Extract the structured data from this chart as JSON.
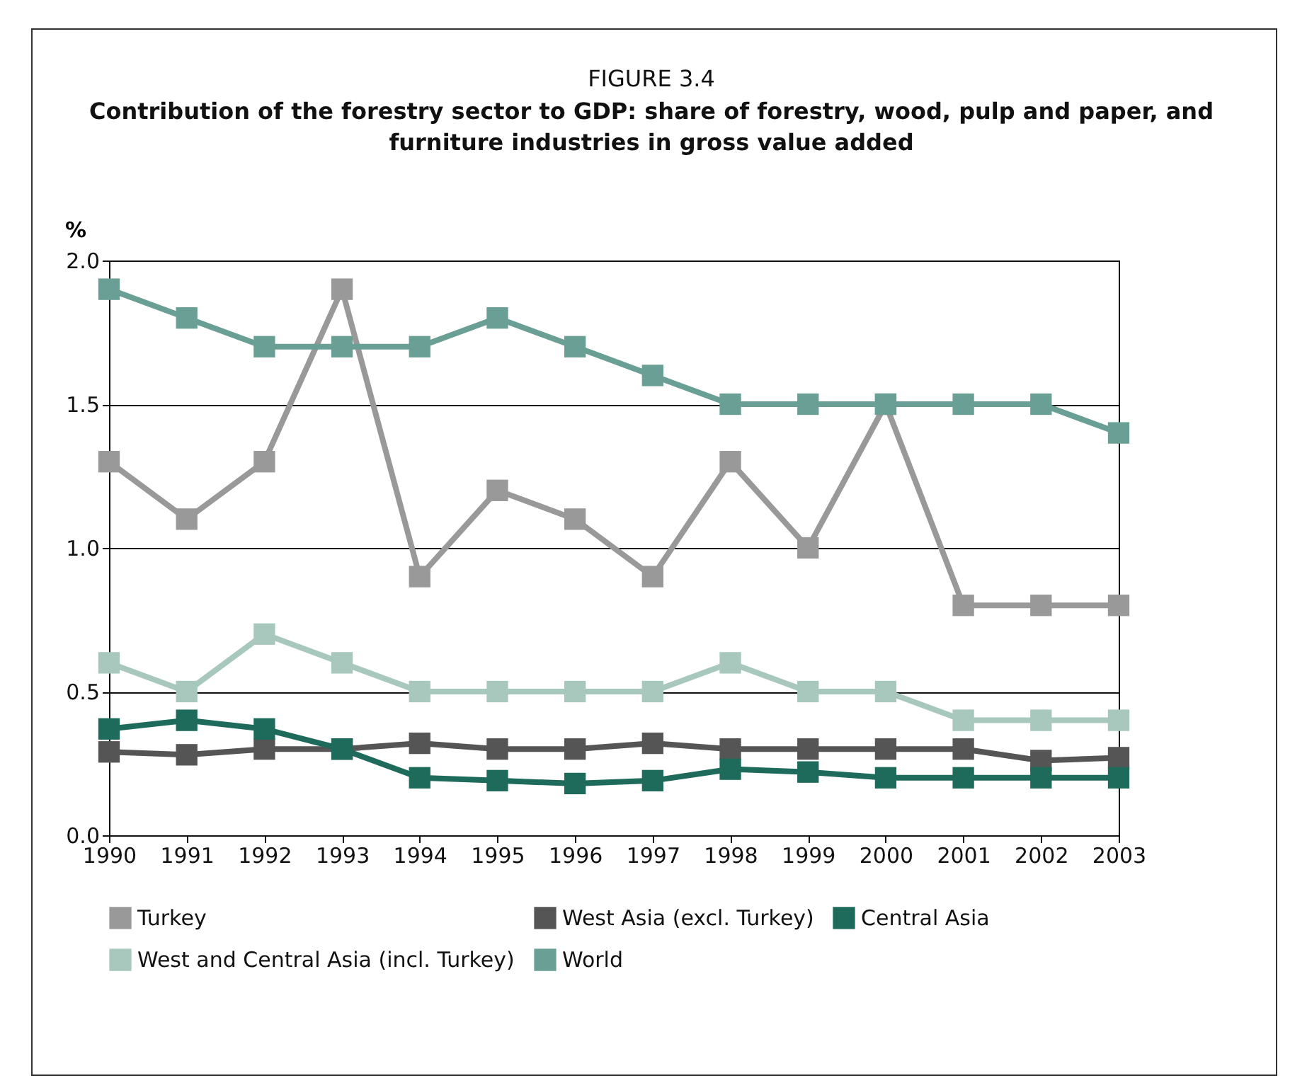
{
  "chart_data": {
    "type": "line",
    "title": "FIGURE 3.4",
    "subtitle": "Contribution of the forestry sector to GDP: share of forestry, wood, pulp and paper, and furniture industries in gross value added",
    "ylabel": "%",
    "categories": [
      "1990",
      "1991",
      "1992",
      "1993",
      "1994",
      "1995",
      "1996",
      "1997",
      "1998",
      "1999",
      "2000",
      "2001",
      "2002",
      "2003"
    ],
    "series": [
      {
        "name": "Turkey",
        "color": "#999999",
        "values": [
          1.3,
          1.1,
          1.3,
          1.9,
          0.9,
          1.2,
          1.1,
          0.9,
          1.3,
          1.0,
          1.5,
          0.8,
          0.8,
          0.8
        ]
      },
      {
        "name": "West Asia (excl. Turkey)",
        "color": "#555555",
        "values": [
          0.29,
          0.28,
          0.3,
          0.3,
          0.32,
          0.3,
          0.3,
          0.32,
          0.3,
          0.3,
          0.3,
          0.3,
          0.26,
          0.27
        ]
      },
      {
        "name": "Central Asia",
        "color": "#1e6b5c",
        "values": [
          0.37,
          0.4,
          0.37,
          0.3,
          0.2,
          0.19,
          0.18,
          0.19,
          0.23,
          0.22,
          0.2,
          0.2,
          0.2,
          0.2
        ]
      },
      {
        "name": "West and Central Asia (incl. Turkey)",
        "color": "#a8c8be",
        "values": [
          0.6,
          0.5,
          0.7,
          0.6,
          0.5,
          0.5,
          0.5,
          0.5,
          0.6,
          0.5,
          0.5,
          0.4,
          0.4,
          0.4
        ]
      },
      {
        "name": "World",
        "color": "#6a9f95",
        "values": [
          1.9,
          1.8,
          1.7,
          1.7,
          1.7,
          1.8,
          1.7,
          1.6,
          1.5,
          1.5,
          1.5,
          1.5,
          1.5,
          1.4
        ]
      }
    ],
    "ylim": [
      0,
      2
    ],
    "yticks": [
      {
        "value": 0,
        "label": "0.0"
      },
      {
        "value": 0.5,
        "label": "0.5"
      },
      {
        "value": 1,
        "label": "1.0"
      },
      {
        "value": 1.5,
        "label": "1.5"
      },
      {
        "value": 2,
        "label": "2.0"
      }
    ],
    "grid": "y",
    "legend": "bottom",
    "marker": "square",
    "line_style": "solid"
  }
}
